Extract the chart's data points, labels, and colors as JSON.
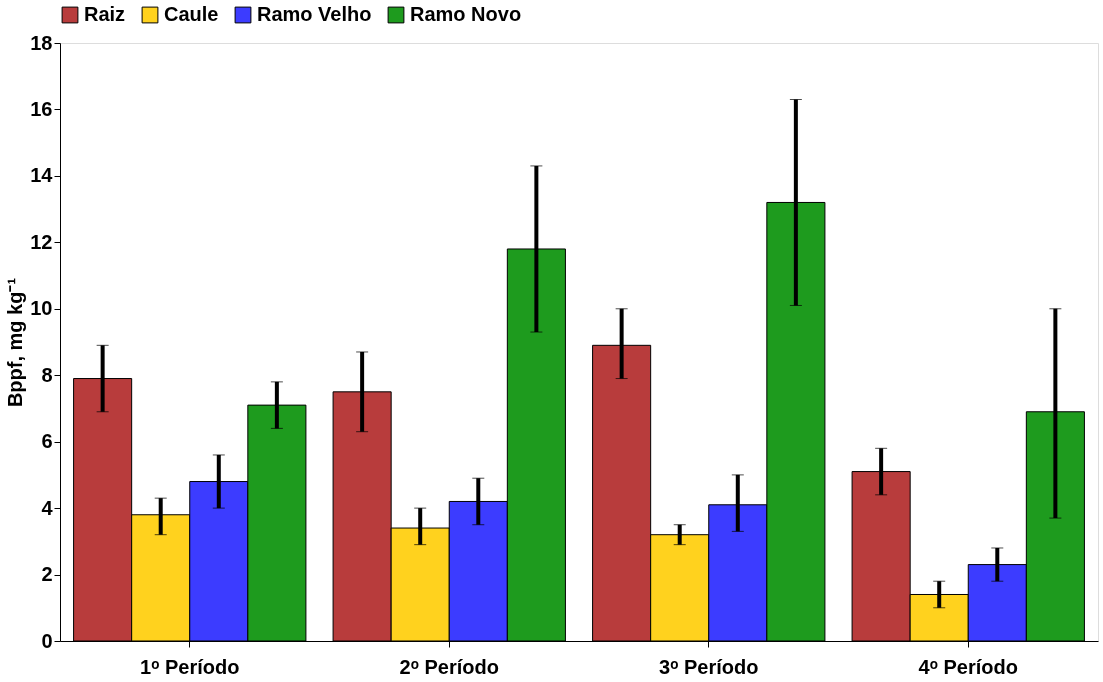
{
  "chart_data": {
    "type": "bar",
    "ylabel": "Bppf, mg kg⁻¹",
    "categories": [
      "1ᵒ Período",
      "2ᵒ Período",
      "3ᵒ Período",
      "4ᵒ Período"
    ],
    "series": [
      {
        "name": "Raiz",
        "color": "#b83c3c",
        "values": [
          7.9,
          7.5,
          8.9,
          5.1
        ],
        "errors": [
          [
            6.9,
            8.9
          ],
          [
            6.3,
            8.7
          ],
          [
            7.9,
            10.0
          ],
          [
            4.4,
            5.8
          ]
        ]
      },
      {
        "name": "Caule",
        "color": "#ffd21e",
        "values": [
          3.8,
          3.4,
          3.2,
          1.4
        ],
        "errors": [
          [
            3.2,
            4.3
          ],
          [
            2.9,
            4.0
          ],
          [
            2.9,
            3.5
          ],
          [
            1.0,
            1.8
          ]
        ]
      },
      {
        "name": "Ramo Velho",
        "color": "#3c3cff",
        "values": [
          4.8,
          4.2,
          4.1,
          2.3
        ],
        "errors": [
          [
            4.0,
            5.6
          ],
          [
            3.5,
            4.9
          ],
          [
            3.3,
            5.0
          ],
          [
            1.8,
            2.8
          ]
        ]
      },
      {
        "name": "Ramo Novo",
        "color": "#1e9b1e",
        "values": [
          7.1,
          11.8,
          13.2,
          6.9
        ],
        "errors": [
          [
            6.4,
            7.8
          ],
          [
            9.3,
            14.3
          ],
          [
            10.1,
            16.3
          ],
          [
            3.7,
            10.0
          ]
        ]
      }
    ],
    "ylim": [
      0,
      18
    ],
    "yticks": [
      0,
      2,
      4,
      6,
      8,
      10,
      12,
      14,
      16,
      18
    ],
    "grid": false,
    "legend": "top"
  }
}
